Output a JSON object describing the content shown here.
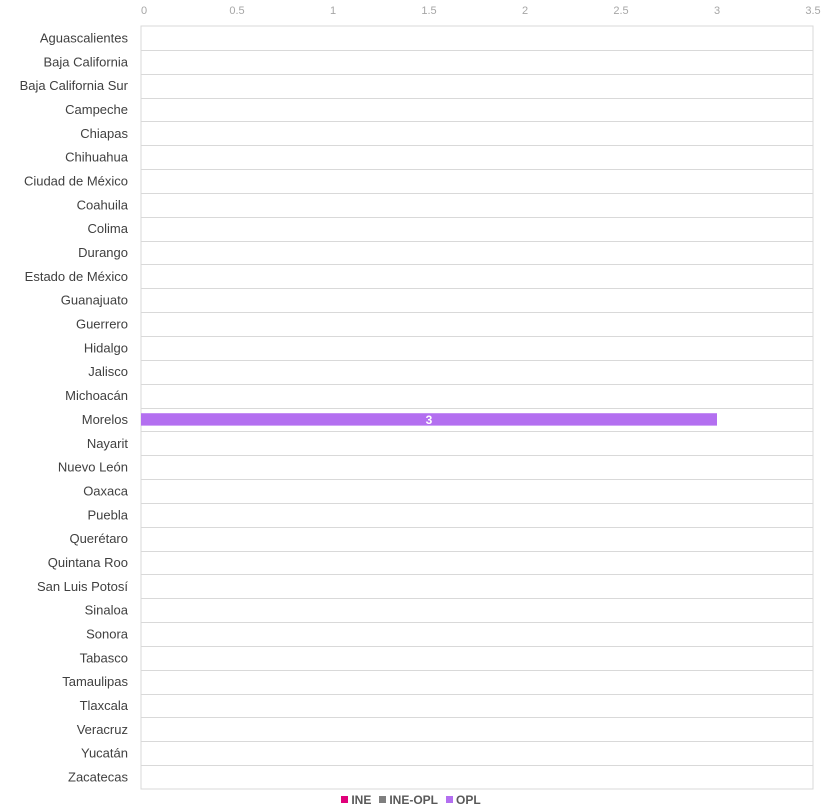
{
  "chart_data": {
    "type": "bar",
    "orientation": "horizontal",
    "categories": [
      "Aguascalientes",
      "Baja California",
      "Baja California Sur",
      "Campeche",
      "Chiapas",
      "Chihuahua",
      "Ciudad de México",
      "Coahuila",
      "Colima",
      "Durango",
      "Estado de México",
      "Guanajuato",
      "Guerrero",
      "Hidalgo",
      "Jalisco",
      "Michoacán",
      "Morelos",
      "Nayarit",
      "Nuevo León",
      "Oaxaca",
      "Puebla",
      "Querétaro",
      "Quintana Roo",
      "San Luis Potosí",
      "Sinaloa",
      "Sonora",
      "Tabasco",
      "Tamaulipas",
      "Tlaxcala",
      "Veracruz",
      "Yucatán",
      "Zacatecas"
    ],
    "series": [
      {
        "name": "INE",
        "color": "#e0007a",
        "values": [
          0,
          0,
          0,
          0,
          0,
          0,
          0,
          0,
          0,
          0,
          0,
          0,
          0,
          0,
          0,
          0,
          0,
          0,
          0,
          0,
          0,
          0,
          0,
          0,
          0,
          0,
          0,
          0,
          0,
          0,
          0,
          0
        ]
      },
      {
        "name": "INE-OPL",
        "color": "#7f7f7f",
        "values": [
          0,
          0,
          0,
          0,
          0,
          0,
          0,
          0,
          0,
          0,
          0,
          0,
          0,
          0,
          0,
          0,
          0,
          0,
          0,
          0,
          0,
          0,
          0,
          0,
          0,
          0,
          0,
          0,
          0,
          0,
          0,
          0
        ]
      },
      {
        "name": "OPL",
        "color": "#b36ff0",
        "values": [
          0,
          0,
          0,
          0,
          0,
          0,
          0,
          0,
          0,
          0,
          0,
          0,
          0,
          0,
          0,
          0,
          3,
          0,
          0,
          0,
          0,
          0,
          0,
          0,
          0,
          0,
          0,
          0,
          0,
          0,
          0,
          0
        ]
      }
    ],
    "data_labels": [
      {
        "category": "Morelos",
        "series": "OPL",
        "label": "3"
      }
    ],
    "x_ticks": [
      "0",
      "0.5",
      "1",
      "1.5",
      "2",
      "2.5",
      "3",
      "3.5"
    ],
    "xlim": [
      0,
      3.5
    ],
    "stacked": true,
    "legend_position": "bottom",
    "grid": "horizontal row separators",
    "title": "",
    "xlabel": "",
    "ylabel": ""
  }
}
